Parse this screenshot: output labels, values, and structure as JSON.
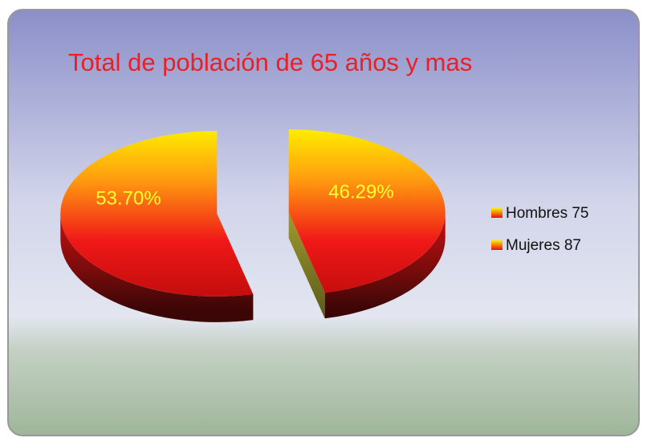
{
  "chart_data": {
    "type": "pie",
    "title": "Total de población de 65 años y mas",
    "categories": [
      "Hombres 75",
      "Mujeres 87"
    ],
    "values": [
      46.29,
      53.7
    ],
    "value_labels": [
      "46.29%",
      "53.70%"
    ],
    "legend": "right"
  }
}
